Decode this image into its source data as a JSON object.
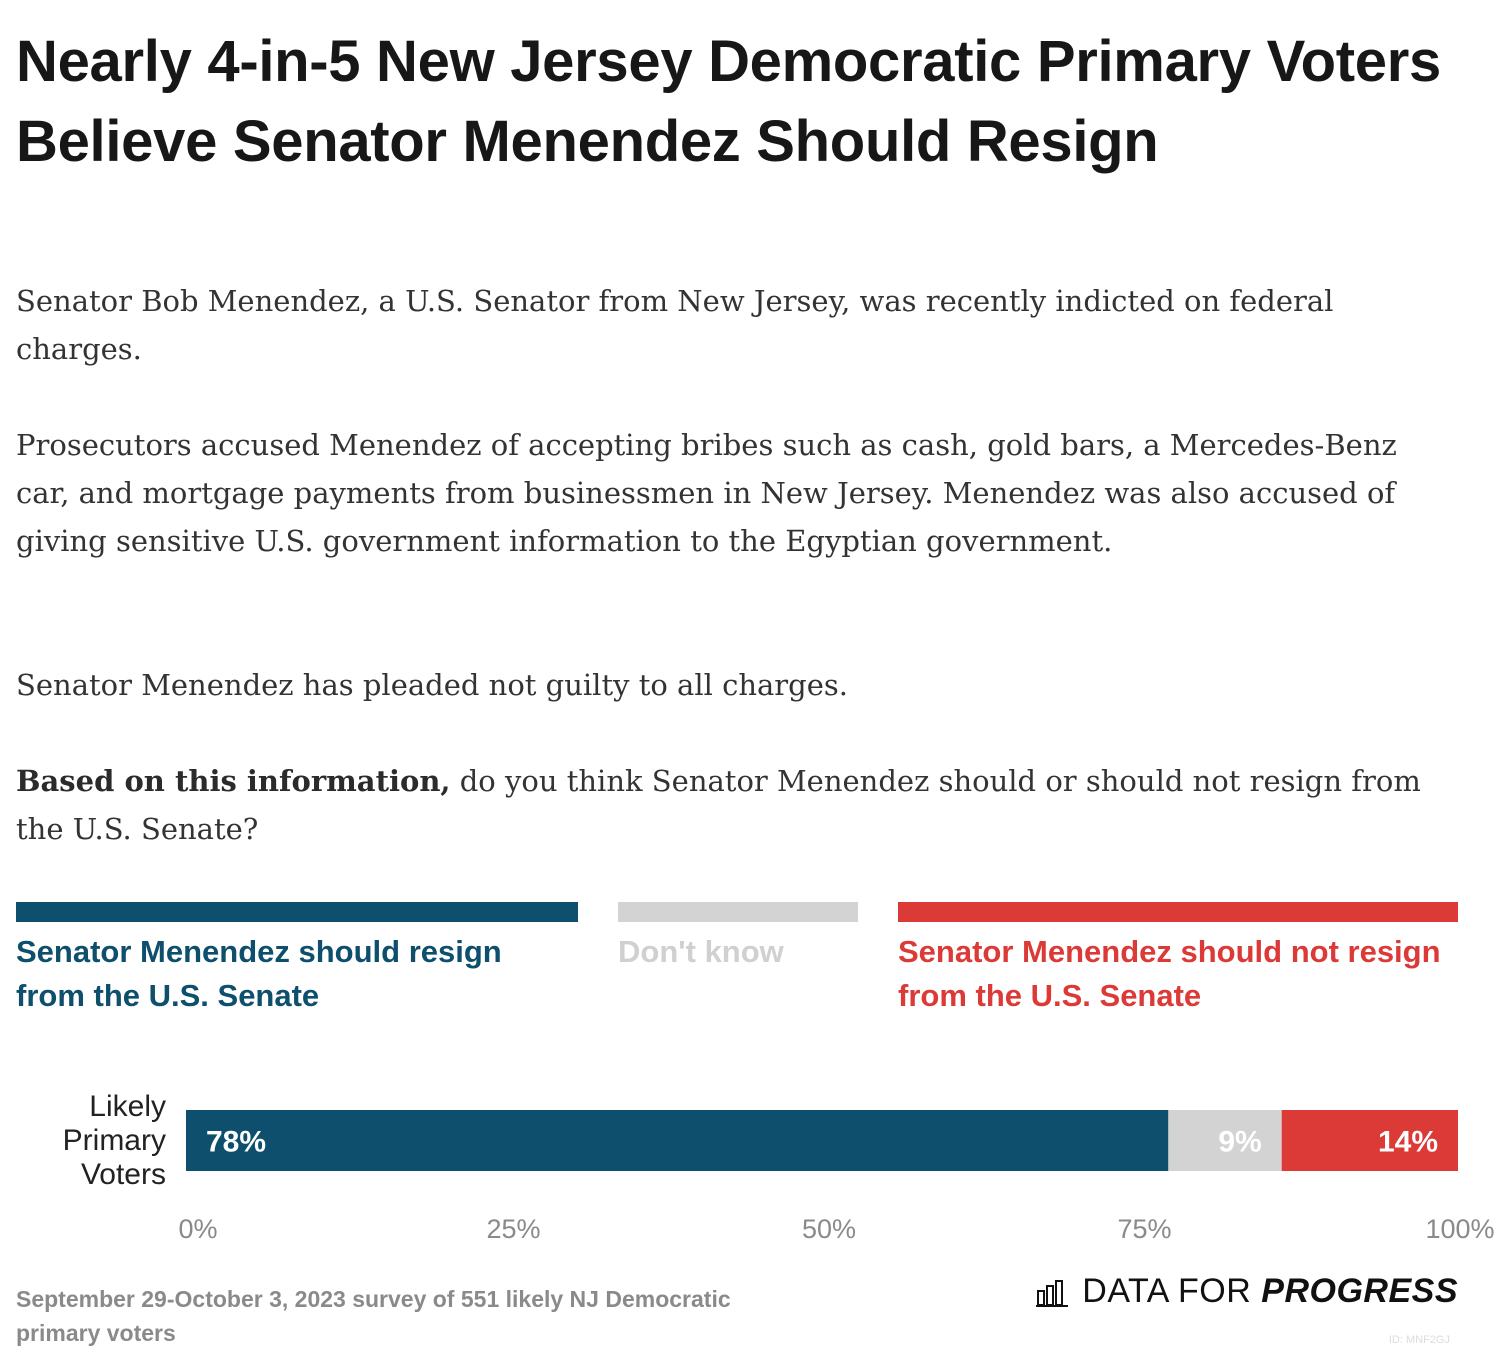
{
  "title": "Nearly 4-in-5 New Jersey Democratic Primary Voters Believe Senator Menendez Should Resign",
  "intro": {
    "p1": "Senator Bob Menendez, a U.S. Senator from New Jersey, was recently indicted on federal charges.",
    "p2": "Prosecutors accused Menendez of accepting bribes such as cash, gold bars, a Mercedes-Benz car, and mortgage payments from businessmen in New Jersey. Menendez was also accused of giving sensitive U.S. government information to the Egyptian government.",
    "p3": "Senator Menendez has pleaded not guilty to all charges.",
    "question_bold": "Based on this information,",
    "question_rest": " do you think Senator Menendez should or should not resign from the U.S. Senate?"
  },
  "legend": [
    {
      "label": "Senator Menendez should resign from the U.S. Senate",
      "color": "#0d4f6c"
    },
    {
      "label": "Don't know",
      "color": "#d3d3d4"
    },
    {
      "label": "Senator Menendez should not resign from the U.S. Senate",
      "color": "#dc3a37"
    }
  ],
  "chart_data": {
    "type": "bar",
    "orientation": "horizontal",
    "stacked": true,
    "categories": [
      "Likely Primary Voters"
    ],
    "series": [
      {
        "name": "Senator Menendez should resign from the U.S. Senate",
        "values": [
          78
        ],
        "labels": [
          "78%"
        ],
        "color": "#0d4f6c"
      },
      {
        "name": "Don't know",
        "values": [
          9
        ],
        "labels": [
          "9%"
        ],
        "color": "#d3d3d4"
      },
      {
        "name": "Senator Menendez should not resign from the U.S. Senate",
        "values": [
          14
        ],
        "labels": [
          "14%"
        ],
        "color": "#dc3a37"
      }
    ],
    "xlim": [
      0,
      100
    ],
    "xticks": [
      "0%",
      "25%",
      "50%",
      "75%",
      "100%"
    ],
    "grid": false,
    "legend_position": "top"
  },
  "footnote": "September 29-October 3, 2023 survey of 551 likely NJ Democratic primary voters",
  "brand": {
    "light": "DATA FOR",
    "strong": "PROGRESS",
    "icon": "bar-chart-icon"
  },
  "chart_id": "ID: MNF2GJ"
}
